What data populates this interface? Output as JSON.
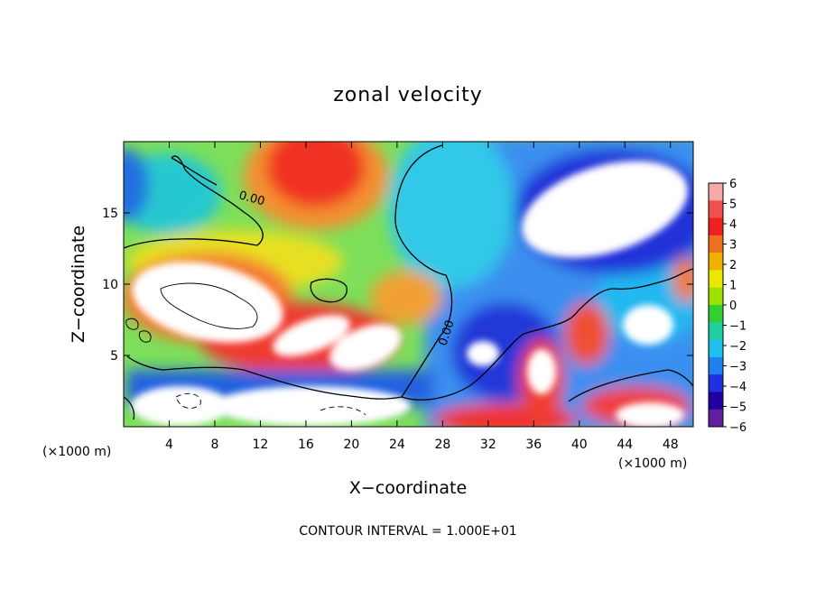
{
  "chart_data": {
    "type": "heatmap",
    "title": "zonal velocity",
    "xlabel": "X−coordinate",
    "ylabel": "Z−coordinate",
    "x_units_left": "(×1000 m)",
    "x_units_right": "(×1000 m)",
    "xlim": [
      0,
      50
    ],
    "ylim": [
      0,
      20
    ],
    "x_ticks": [
      4,
      8,
      12,
      16,
      20,
      24,
      28,
      32,
      36,
      40,
      44,
      48
    ],
    "y_ticks": [
      5,
      10,
      15
    ],
    "colorbar": {
      "ticks": [
        6,
        5,
        4,
        3,
        2,
        1,
        0,
        -1,
        -2,
        -3,
        -4,
        -5,
        -6
      ],
      "tick_labels": [
        "6",
        "5",
        "4",
        "3",
        "2",
        "1",
        "0",
        "−1",
        "−2",
        "−3",
        "−4",
        "−5",
        "−6"
      ],
      "colors": [
        "#f8a8a8",
        "#f05050",
        "#f02020",
        "#f07020",
        "#f0b000",
        "#e8e800",
        "#a0e000",
        "#30d030",
        "#20d0a0",
        "#20c0f0",
        "#2080f0",
        "#2030e0",
        "#2000a0",
        "#6020a0"
      ]
    },
    "contour_label": "0.00",
    "annotation": "CONTOUR INTERVAL = 1.000E+01"
  }
}
